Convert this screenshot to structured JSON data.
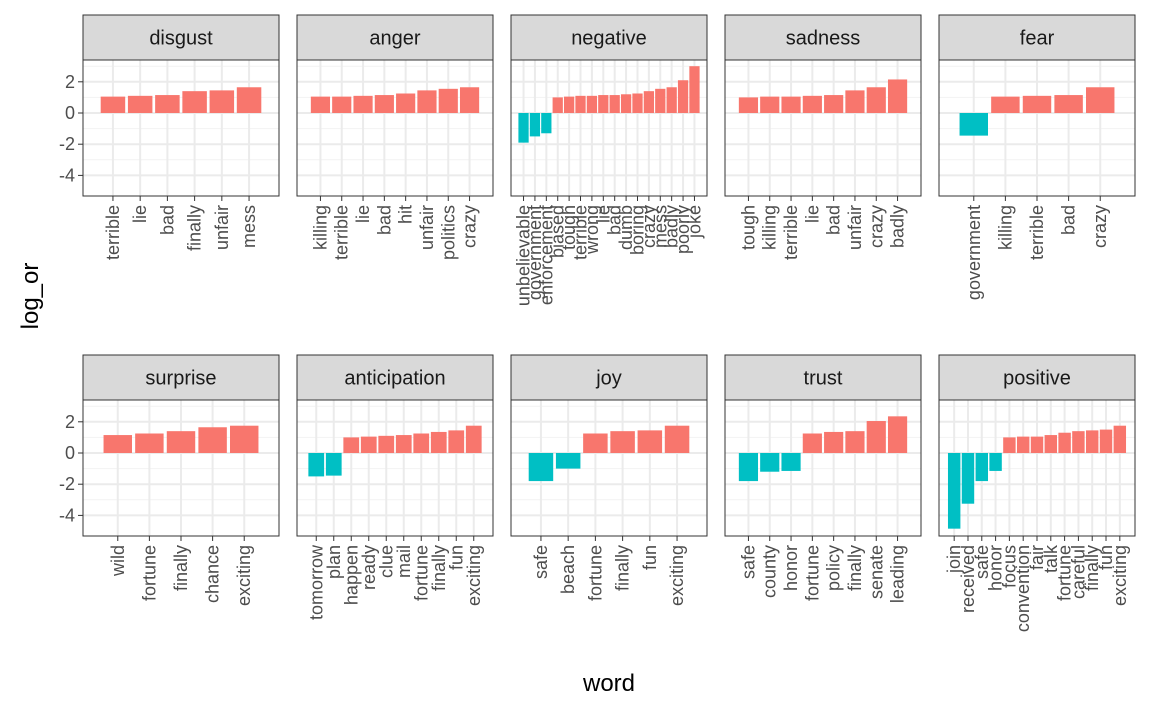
{
  "chart_data": {
    "type": "bar",
    "layout": "faceted",
    "xlabel": "word",
    "ylabel": "log_or",
    "ylim": [
      -5,
      3.5
    ],
    "yticks": [
      2,
      0,
      -2,
      -4
    ],
    "grid": true,
    "colors": {
      "positive": "#F8766D",
      "negative": "#00BFC4"
    },
    "facets": [
      {
        "label": "disgust",
        "words": [
          "terrible",
          "lie",
          "bad",
          "finally",
          "unfair",
          "mess"
        ],
        "values": [
          1.05,
          1.1,
          1.15,
          1.4,
          1.45,
          1.65
        ]
      },
      {
        "label": "anger",
        "words": [
          "killing",
          "terrible",
          "lie",
          "bad",
          "hit",
          "unfair",
          "politics",
          "crazy"
        ],
        "values": [
          1.05,
          1.05,
          1.1,
          1.15,
          1.25,
          1.45,
          1.55,
          1.65
        ]
      },
      {
        "label": "negative",
        "words": [
          "unbelievable",
          "government",
          "enforcement",
          "biased",
          "tough",
          "terrible",
          "wrong",
          "lie",
          "bad",
          "dumb",
          "boring",
          "crazy",
          "mess",
          "badly",
          "poorly",
          "joke"
        ],
        "values": [
          -1.9,
          -1.5,
          -1.3,
          1.0,
          1.05,
          1.1,
          1.1,
          1.15,
          1.15,
          1.2,
          1.25,
          1.4,
          1.55,
          1.65,
          2.1,
          3.0
        ]
      },
      {
        "label": "sadness",
        "words": [
          "tough",
          "killing",
          "terrible",
          "lie",
          "bad",
          "unfair",
          "crazy",
          "badly"
        ],
        "values": [
          1.0,
          1.05,
          1.05,
          1.1,
          1.15,
          1.45,
          1.65,
          2.15
        ]
      },
      {
        "label": "fear",
        "words": [
          "government",
          "killing",
          "terrible",
          "bad",
          "crazy"
        ],
        "values": [
          -1.45,
          1.05,
          1.1,
          1.15,
          1.65
        ]
      },
      {
        "label": "surprise",
        "words": [
          "wild",
          "fortune",
          "finally",
          "chance",
          "exciting"
        ],
        "values": [
          1.15,
          1.25,
          1.4,
          1.65,
          1.75
        ]
      },
      {
        "label": "anticipation",
        "words": [
          "tomorrow",
          "plan",
          "happen",
          "ready",
          "clue",
          "mail",
          "fortune",
          "finally",
          "fun",
          "exciting"
        ],
        "values": [
          -1.5,
          -1.45,
          1.0,
          1.05,
          1.1,
          1.15,
          1.25,
          1.35,
          1.45,
          1.75
        ]
      },
      {
        "label": "joy",
        "words": [
          "safe",
          "beach",
          "fortune",
          "finally",
          "fun",
          "exciting"
        ],
        "values": [
          -1.8,
          -1.0,
          1.25,
          1.4,
          1.45,
          1.75
        ]
      },
      {
        "label": "trust",
        "words": [
          "safe",
          "county",
          "honor",
          "fortune",
          "policy",
          "finally",
          "senate",
          "leading"
        ],
        "values": [
          -1.8,
          -1.2,
          -1.15,
          1.25,
          1.35,
          1.4,
          2.05,
          2.35
        ]
      },
      {
        "label": "positive",
        "words": [
          "join",
          "received",
          "safe",
          "honor",
          "focus",
          "convention",
          "fair",
          "talk",
          "fortune",
          "careful",
          "finally",
          "fun",
          "exciting"
        ],
        "values": [
          -4.85,
          -3.25,
          -1.8,
          -1.15,
          1.0,
          1.05,
          1.05,
          1.15,
          1.3,
          1.4,
          1.45,
          1.5,
          1.75
        ]
      }
    ]
  }
}
